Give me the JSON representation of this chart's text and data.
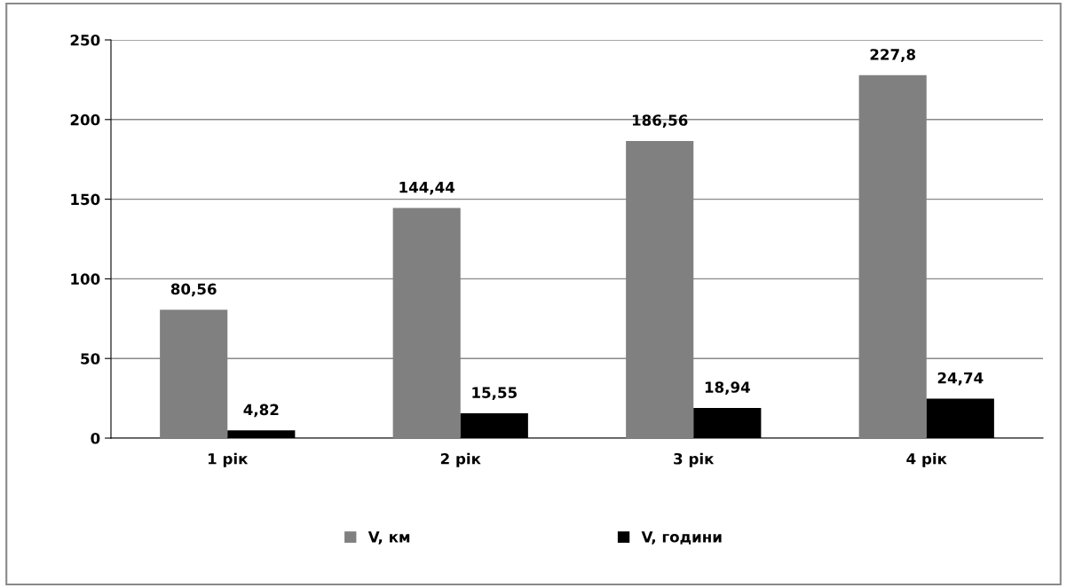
{
  "chart_data": {
    "type": "bar",
    "categories": [
      "1 рік",
      "2 рік",
      "3 рік",
      "4 рік"
    ],
    "series": [
      {
        "name": "V, км",
        "color": "#808080",
        "values": [
          80.56,
          144.44,
          186.56,
          227.8
        ],
        "value_labels": [
          "80,56",
          "144,44",
          "186,56",
          "227,8"
        ]
      },
      {
        "name": "V, години",
        "color": "#000000",
        "values": [
          4.82,
          15.55,
          18.94,
          24.74
        ],
        "value_labels": [
          "4,82",
          "15,55",
          "18,94",
          "24,74"
        ]
      }
    ],
    "ylim": [
      0,
      250
    ],
    "yticks": [
      0,
      50,
      100,
      150,
      200,
      250
    ],
    "grid": "y",
    "legend": "bottom"
  }
}
